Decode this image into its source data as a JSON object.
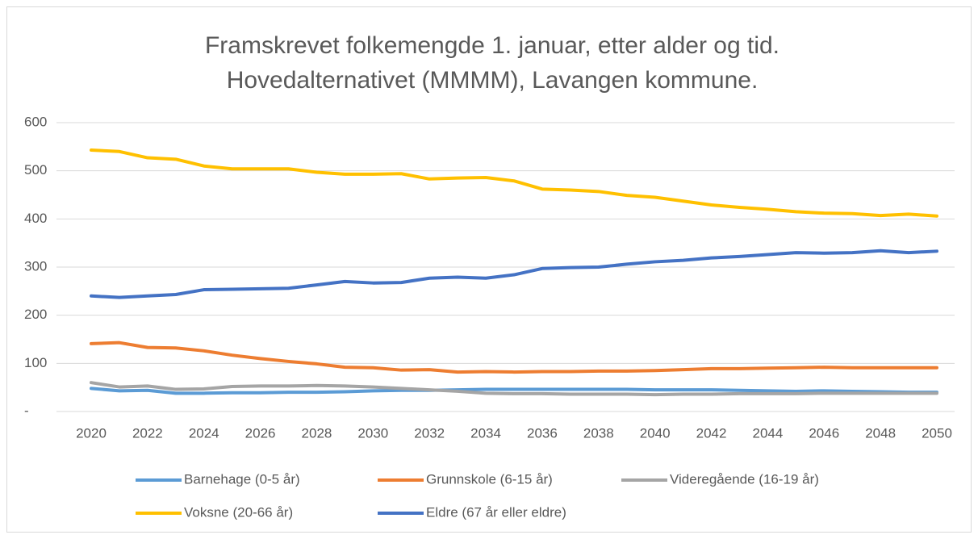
{
  "chart_data": {
    "type": "line",
    "title": [
      "Framskrevet folkemengde 1. januar, etter alder og tid.",
      "Hovedalternativet (MMMM), Lavangen kommune."
    ],
    "x": [
      2020,
      2021,
      2022,
      2023,
      2024,
      2025,
      2026,
      2027,
      2028,
      2029,
      2030,
      2031,
      2032,
      2033,
      2034,
      2035,
      2036,
      2037,
      2038,
      2039,
      2040,
      2041,
      2042,
      2043,
      2044,
      2045,
      2046,
      2047,
      2048,
      2049,
      2050
    ],
    "xlim": [
      2020,
      2050
    ],
    "xticks": [
      2020,
      2022,
      2024,
      2026,
      2028,
      2030,
      2032,
      2034,
      2036,
      2038,
      2040,
      2042,
      2044,
      2046,
      2048,
      2050
    ],
    "ylim": [
      0,
      600
    ],
    "yticks": [
      {
        "value": 0,
        "label": "-"
      },
      100,
      200,
      300,
      400,
      500,
      600
    ],
    "grid": true,
    "legend": "bottom",
    "series": [
      {
        "name": "Barnehage (0-5 år)",
        "color": "#5b9bd5",
        "values": [
          48,
          43,
          44,
          38,
          38,
          39,
          39,
          40,
          40,
          41,
          43,
          44,
          44,
          45,
          46,
          46,
          46,
          46,
          46,
          46,
          45,
          45,
          45,
          44,
          43,
          42,
          43,
          42,
          41,
          40,
          40
        ]
      },
      {
        "name": "Grunnskole (6-15 år)",
        "color": "#ed7d31",
        "values": [
          141,
          143,
          133,
          132,
          126,
          117,
          110,
          104,
          99,
          92,
          91,
          86,
          87,
          82,
          83,
          82,
          83,
          83,
          84,
          84,
          85,
          87,
          89,
          89,
          90,
          91,
          92,
          91,
          91,
          91,
          91
        ]
      },
      {
        "name": "Videregående (16-19 år)",
        "color": "#a5a5a5",
        "values": [
          60,
          51,
          53,
          46,
          47,
          52,
          53,
          53,
          54,
          53,
          51,
          48,
          45,
          42,
          38,
          37,
          37,
          36,
          36,
          36,
          35,
          36,
          36,
          37,
          37,
          37,
          38,
          38,
          38,
          38,
          38
        ]
      },
      {
        "name": "Voksne (20-66 år)",
        "color": "#ffc000",
        "values": [
          543,
          540,
          527,
          524,
          510,
          504,
          504,
          504,
          497,
          493,
          493,
          494,
          483,
          485,
          486,
          479,
          462,
          460,
          457,
          449,
          445,
          437,
          429,
          424,
          420,
          415,
          412,
          411,
          407,
          410,
          406
        ]
      },
      {
        "name": "Eldre (67 år eller eldre)",
        "color": "#4472c4",
        "values": [
          240,
          237,
          240,
          243,
          253,
          254,
          255,
          256,
          263,
          270,
          267,
          268,
          277,
          279,
          277,
          284,
          297,
          299,
          300,
          306,
          311,
          314,
          319,
          322,
          326,
          330,
          329,
          330,
          334,
          330,
          333
        ]
      }
    ]
  }
}
